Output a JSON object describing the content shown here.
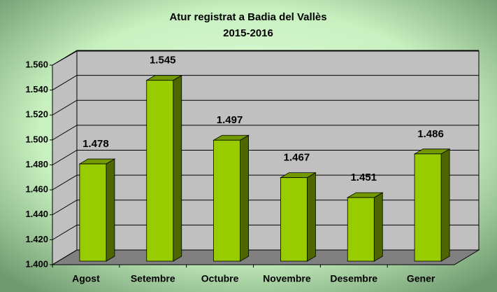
{
  "chart_data": {
    "type": "bar3d",
    "title": "Atur registrat a Badia del Vallès",
    "subtitle": "2015-2016",
    "categories": [
      "Agost",
      "Setembre",
      "Octubre",
      "Novembre",
      "Desembre",
      "Gener"
    ],
    "values": [
      1478,
      1545,
      1497,
      1467,
      1451,
      1486
    ],
    "value_labels": [
      "1.478",
      "1.545",
      "1.497",
      "1.467",
      "1.451",
      "1.486"
    ],
    "color": "#99cc00",
    "ylim": [
      1400,
      1560
    ],
    "yticks": [
      {
        "value": 1400,
        "label": "1.400"
      },
      {
        "value": 1420,
        "label": "1.420"
      },
      {
        "value": 1440,
        "label": "1.440"
      },
      {
        "value": 1460,
        "label": "1.460"
      },
      {
        "value": 1480,
        "label": "1.480"
      },
      {
        "value": 1500,
        "label": "1.500"
      },
      {
        "value": 1520,
        "label": "1.520"
      },
      {
        "value": 1540,
        "label": "1.540"
      },
      {
        "value": 1560,
        "label": "1.560"
      }
    ],
    "grid": true
  }
}
